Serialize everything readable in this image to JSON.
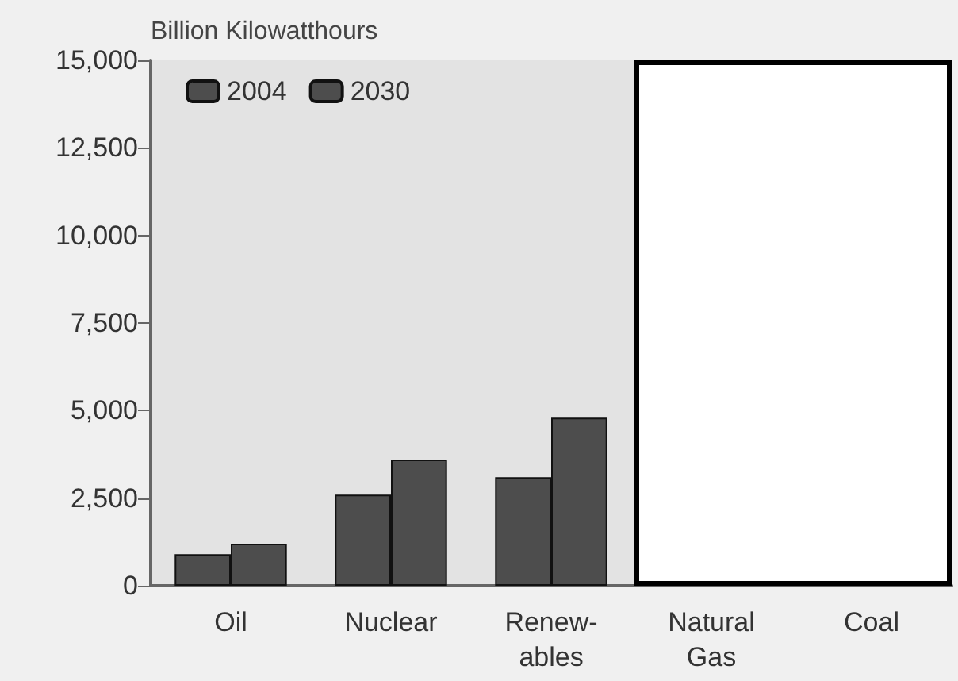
{
  "chart_data": {
    "type": "bar",
    "ylabel": "Billion Kilowatthours",
    "categories": [
      "Oil",
      "Nuclear",
      "Renew-\nables",
      "Natural\nGas",
      "Coal"
    ],
    "series": [
      {
        "name": "2004",
        "color": "#4d4d4d",
        "values": [
          900,
          2600,
          3100,
          null,
          null
        ]
      },
      {
        "name": "2030",
        "color": "#4d4d4d",
        "values": [
          1200,
          3600,
          4800,
          null,
          null
        ]
      }
    ],
    "ylim": [
      0,
      15000
    ],
    "yticks": [
      0,
      {
        "value": 2500,
        "label": "2,500"
      },
      {
        "value": 5000,
        "label": "5,000"
      },
      {
        "value": 7500,
        "label": "7,500"
      },
      {
        "value": 10000,
        "label": "10,000"
      },
      {
        "value": 12500,
        "label": "12,500"
      },
      {
        "value": 15000,
        "label": "15,000"
      }
    ],
    "grid": false,
    "legend": "top left"
  }
}
